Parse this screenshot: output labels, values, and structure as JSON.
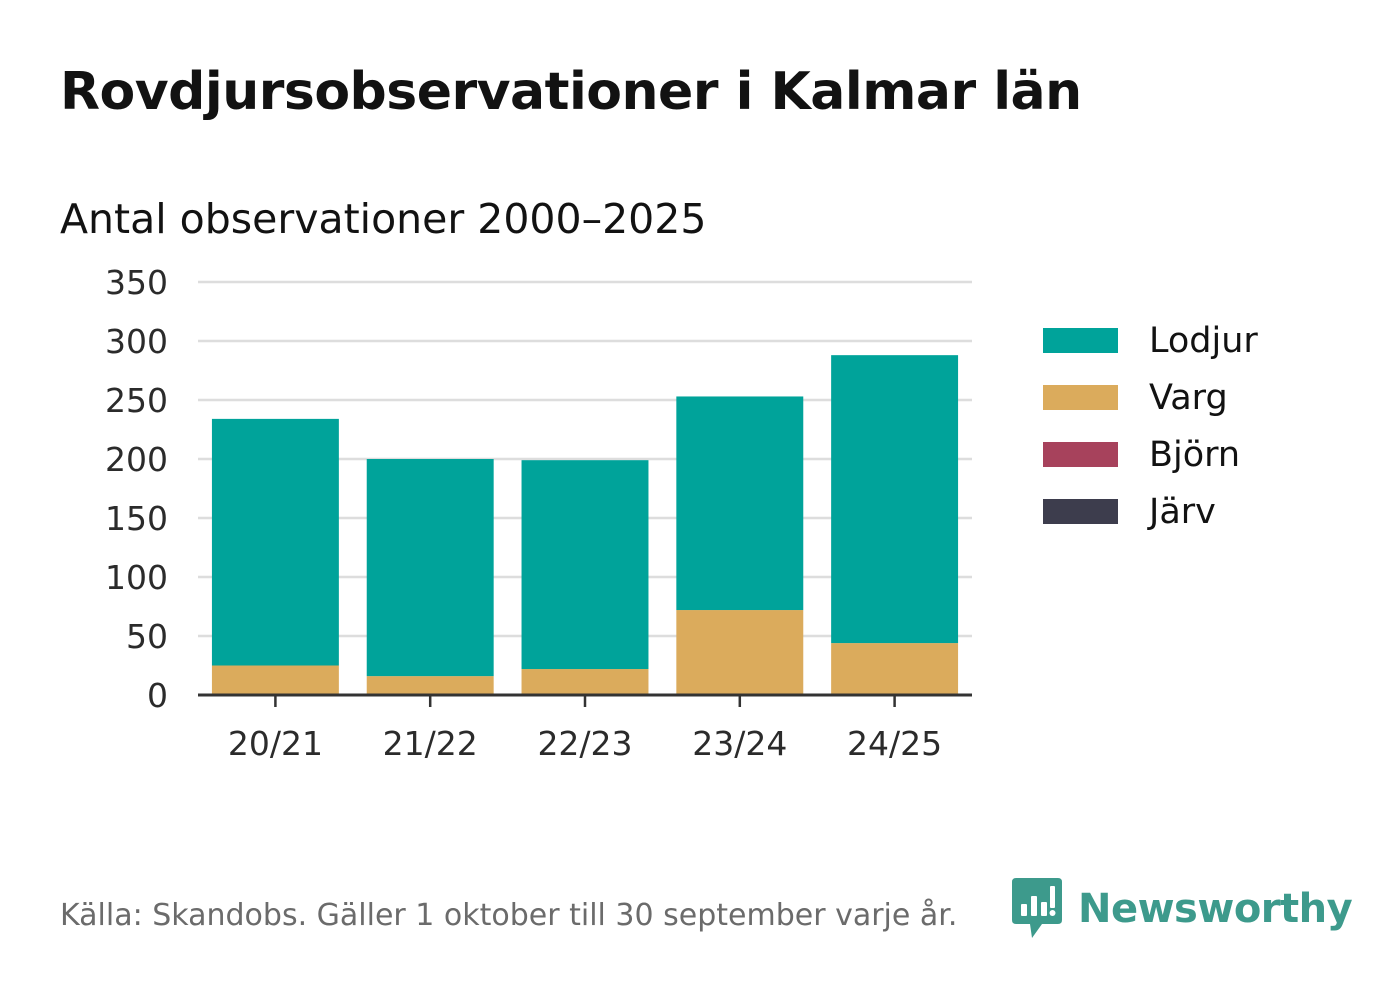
{
  "header": {
    "title": "Rovdjursobservationer i Kalmar län",
    "subtitle": "Antal observationer 2000–2025"
  },
  "chart_data": {
    "type": "bar",
    "stacked": true,
    "title": "Rovdjursobservationer i Kalmar län",
    "subtitle": "Antal observationer 2000–2025",
    "xlabel": "",
    "ylabel": "",
    "ylim": [
      0,
      350
    ],
    "yticks": [
      0,
      50,
      100,
      150,
      200,
      250,
      300,
      350
    ],
    "grid": true,
    "legend_position": "right",
    "categories": [
      "20/21",
      "21/22",
      "22/23",
      "23/24",
      "24/25"
    ],
    "series": [
      {
        "name": "Järv",
        "color": "#3d3d4d",
        "values": [
          0,
          0,
          0,
          0,
          0
        ]
      },
      {
        "name": "Björn",
        "color": "#a7425c",
        "values": [
          0,
          0,
          0,
          0,
          0
        ]
      },
      {
        "name": "Varg",
        "color": "#dbab5c",
        "values": [
          25,
          16,
          22,
          72,
          44
        ]
      },
      {
        "name": "Lodjur",
        "color": "#00a39a",
        "values": [
          209,
          184,
          177,
          181,
          244
        ]
      }
    ]
  },
  "legend": {
    "items": [
      {
        "label": "Lodjur",
        "color": "#00a39a"
      },
      {
        "label": "Varg",
        "color": "#dbab5c"
      },
      {
        "label": "Björn",
        "color": "#a7425c"
      },
      {
        "label": "Järv",
        "color": "#3d3d4d"
      }
    ]
  },
  "footer": {
    "source": "Källa: Skandobs. Gäller 1 oktober till 30 september varje år."
  },
  "brand": {
    "name": "Newsworthy",
    "icon": "newsworthy-logo-icon",
    "color": "#3d9a8c"
  },
  "colors": {
    "grid": "#dddddd",
    "axis": "#333333"
  }
}
